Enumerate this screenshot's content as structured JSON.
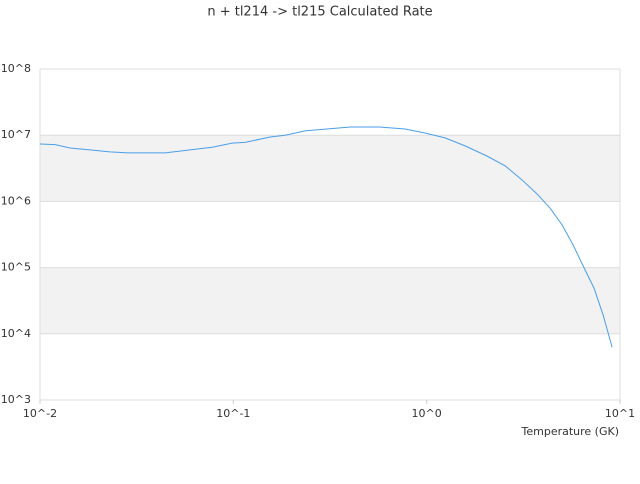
{
  "chart_data": {
    "type": "line",
    "title": "n + tl214 -> tl215 Calculated Rate",
    "x_label": "Temperature (GK)",
    "log_x": true,
    "log_y": true,
    "grid": true,
    "bands": true,
    "xlim": [
      0.01,
      10
    ],
    "ylim": [
      1000,
      100000000
    ],
    "xticks": [
      {
        "value": 0.01,
        "label": "10^-2"
      },
      {
        "value": 0.1,
        "label": "10^-1"
      },
      {
        "value": 1,
        "label": "10^0"
      },
      {
        "value": 10,
        "label": "10^1"
      }
    ],
    "yticks": [
      {
        "value": 1000,
        "label": "10^3"
      },
      {
        "value": 10000,
        "label": "10^4"
      },
      {
        "value": 100000,
        "label": "10^5"
      },
      {
        "value": 1000000,
        "label": "10^6"
      },
      {
        "value": 10000000,
        "label": "10^7"
      },
      {
        "value": 100000000,
        "label": "10^8"
      }
    ],
    "series": [
      {
        "color": "#4a9ee8",
        "x": [
          0.01,
          0.012,
          0.0143,
          0.0181,
          0.023,
          0.0285,
          0.0444,
          0.0597,
          0.0785,
          0.0985,
          0.115,
          0.155,
          0.185,
          0.235,
          0.356,
          0.402,
          0.574,
          0.773,
          0.98,
          1.245,
          1.58,
          2.05,
          2.55,
          3.12,
          3.73,
          4.35,
          5.02,
          5.72,
          6.52,
          7.34,
          8.18,
          9.1
        ],
        "values": [
          7360000,
          7200000,
          6400000,
          6000000,
          5600000,
          5400000,
          5400000,
          6000000,
          6600000,
          7600000,
          7800000,
          9400000,
          10000000,
          11600000,
          12900000,
          13300000,
          13300000,
          12400000,
          10800000,
          9100000,
          6900000,
          4850000,
          3430000,
          2100000,
          1290000,
          790000,
          440000,
          220000,
          99000,
          49000,
          19200,
          6300
        ]
      }
    ]
  }
}
